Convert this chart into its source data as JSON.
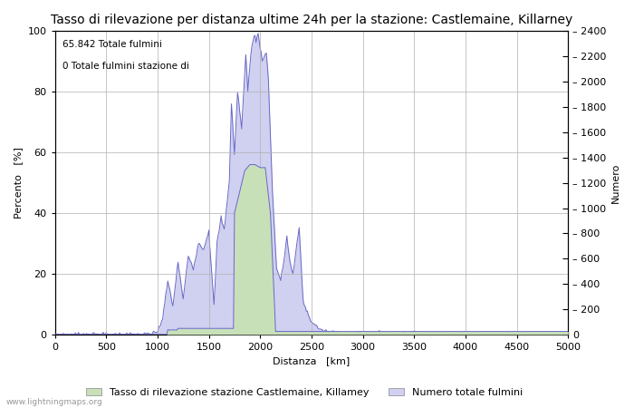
{
  "title": "Tasso di rilevazione per distanza ultime 24h per la stazione: Castlemaine, Killarney",
  "xlabel": "Distanza   [km]",
  "ylabel_left": "Percento   [%]",
  "ylabel_right": "Numero",
  "annotation_line1": "65.842 Totale fulmini",
  "annotation_line2": "0 Totale fulmini stazione di",
  "legend_label1": "Tasso di rilevazione stazione Castlemaine, Killamey",
  "legend_label2": "Numero totale fulmini",
  "watermark": "www.lightningmaps.org",
  "xlim": [
    0,
    5000
  ],
  "ylim_left": [
    0,
    100
  ],
  "ylim_right": [
    0,
    2400
  ],
  "xticks": [
    0,
    500,
    1000,
    1500,
    2000,
    2500,
    3000,
    3500,
    4000,
    4500,
    5000
  ],
  "yticks_left": [
    0,
    20,
    40,
    60,
    80,
    100
  ],
  "yticks_right": [
    0,
    200,
    400,
    600,
    800,
    1000,
    1200,
    1400,
    1600,
    1800,
    2000,
    2200,
    2400
  ],
  "fill_color_green": "#c8e0b8",
  "fill_color_blue": "#d0d0f0",
  "line_color": "#6868c8",
  "background_color": "#ffffff",
  "title_fontsize": 10,
  "axis_fontsize": 8,
  "tick_fontsize": 8,
  "legend_fontsize": 8
}
